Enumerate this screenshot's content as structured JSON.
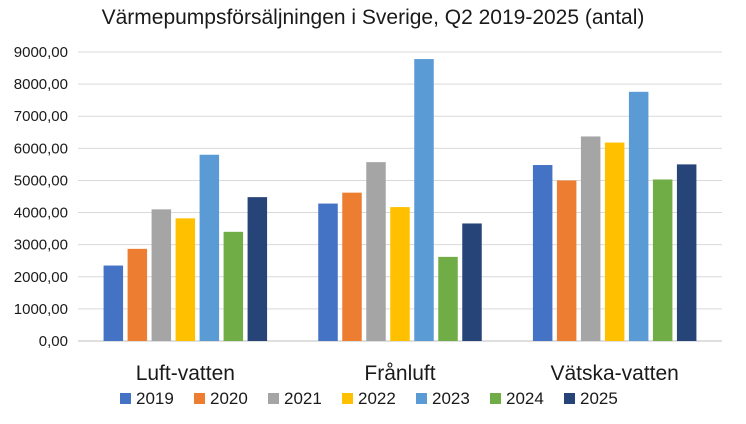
{
  "chart_data": {
    "type": "bar",
    "title": "Värmepumpsförsäljningen i Sverige, Q2 2019-2025 (antal)",
    "xlabel": "",
    "ylabel": "",
    "categories": [
      "Luft-vatten",
      "Frånluft",
      "Vätska-vatten"
    ],
    "ylim": [
      0,
      9000
    ],
    "yticks": [
      0,
      1000,
      2000,
      3000,
      4000,
      5000,
      6000,
      7000,
      8000,
      9000
    ],
    "ytick_labels": [
      "0,00",
      "1000,00",
      "2000,00",
      "3000,00",
      "4000,00",
      "5000,00",
      "6000,00",
      "7000,00",
      "8000,00",
      "9000,00"
    ],
    "grid": true,
    "legend_position": "bottom",
    "series": [
      {
        "name": "2019",
        "color": "#4472C4",
        "values": [
          2350,
          4280,
          5480
        ]
      },
      {
        "name": "2020",
        "color": "#ED7D31",
        "values": [
          2870,
          4620,
          5000
        ]
      },
      {
        "name": "2021",
        "color": "#A5A5A5",
        "values": [
          4100,
          5570,
          6370
        ]
      },
      {
        "name": "2022",
        "color": "#FFC000",
        "values": [
          3820,
          4170,
          6180
        ]
      },
      {
        "name": "2023",
        "color": "#5B9BD5",
        "values": [
          5800,
          8780,
          7760
        ]
      },
      {
        "name": "2024",
        "color": "#70AD47",
        "values": [
          3400,
          2620,
          5030
        ]
      },
      {
        "name": "2025",
        "color": "#264478",
        "values": [
          4480,
          3660,
          5500
        ]
      }
    ]
  }
}
